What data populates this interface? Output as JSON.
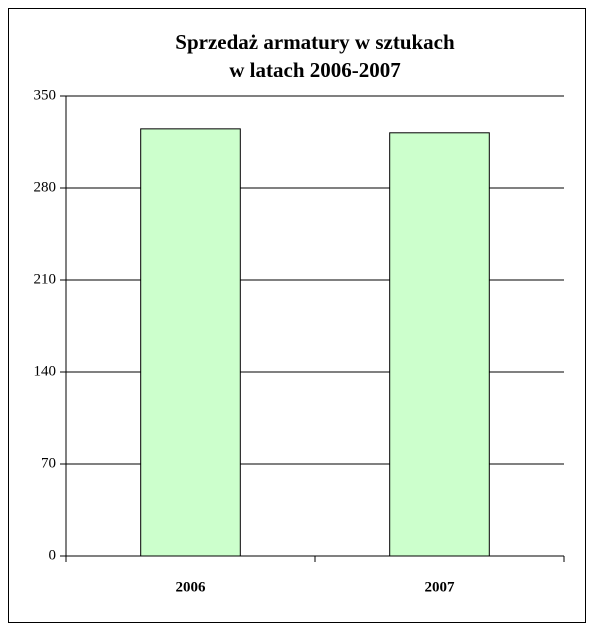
{
  "chart_data": {
    "type": "bar",
    "title": [
      "Sprzedaż armatury w sztukach",
      "w latach 2006-2007"
    ],
    "categories": [
      "2006",
      "2007"
    ],
    "values": [
      325,
      322
    ],
    "color": "#ccffcc",
    "ylim": [
      0,
      350
    ],
    "yticks": [
      0,
      70,
      140,
      210,
      280,
      350
    ],
    "grid": true
  }
}
